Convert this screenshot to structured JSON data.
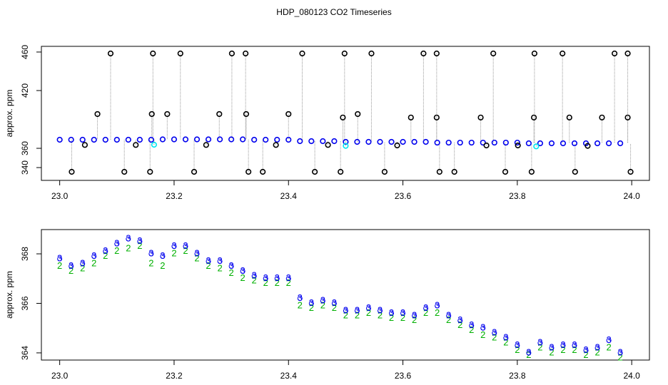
{
  "chart_data": [
    {
      "type": "scatter",
      "title": "HDP_080123  CO2 Timeseries",
      "y_label": "approx. ppm",
      "xlim": [
        22.968,
        24.031
      ],
      "ylim": [
        326.7,
        465.9
      ],
      "xticks": [
        {
          "value": 23,
          "label": "23.0"
        },
        23.2,
        23.4,
        23.6,
        23.8,
        {
          "value": 24,
          "label": "24.0"
        }
      ],
      "yticks": [
        340,
        360,
        420,
        460
      ],
      "series": [
        {
          "color": "#0000ee",
          "x": [
            23.0,
            23.02,
            23.04,
            23.06,
            23.08,
            23.1,
            23.12,
            23.14,
            23.16,
            23.18,
            23.2,
            23.22,
            23.24,
            23.26,
            23.28,
            23.3,
            23.32,
            23.34,
            23.36,
            23.38,
            23.4,
            23.42,
            23.44,
            23.46,
            23.48,
            23.5,
            23.52,
            23.54,
            23.56,
            23.58,
            23.6,
            23.62,
            23.64,
            23.66,
            23.68,
            23.7,
            23.72,
            23.74,
            23.76,
            23.78,
            23.8,
            23.82,
            23.84,
            23.86,
            23.88,
            23.9,
            23.92,
            23.94,
            23.96,
            23.98
          ],
          "values": [
            368.9,
            368.9,
            368.9,
            368.9,
            368.9,
            368.9,
            368.9,
            368.9,
            368.9,
            369.3,
            369.3,
            369.3,
            369.3,
            369.3,
            369.3,
            369.3,
            369.3,
            368.9,
            368.9,
            368.9,
            368.9,
            367.4,
            367.4,
            367.4,
            367.4,
            366.7,
            366.7,
            366.7,
            366.7,
            366.7,
            366.7,
            366.7,
            366.7,
            365.9,
            365.9,
            365.9,
            365.9,
            365.9,
            365.9,
            365.9,
            365.9,
            365.2,
            365.2,
            365.2,
            365.2,
            365.2,
            365.2,
            365.2,
            365.2,
            365.2
          ]
        },
        {
          "color": "#000000",
          "x": [
            23.089,
            23.163,
            23.211,
            23.301,
            23.325,
            23.424,
            23.498,
            23.545,
            23.636,
            23.659,
            23.758,
            23.83,
            23.879,
            23.97,
            23.993,
            23.021,
            23.113,
            23.158,
            23.235,
            23.33,
            23.355,
            23.446,
            23.491,
            23.568,
            23.664,
            23.69,
            23.779,
            23.825,
            23.901,
            23.998,
            23.066,
            23.161,
            23.188,
            23.279,
            23.326,
            23.4,
            23.495,
            23.521,
            23.614,
            23.659,
            23.736,
            23.829,
            23.891,
            23.948,
            23.993,
            23.044,
            23.133,
            23.256,
            23.378,
            23.469,
            23.59,
            23.746,
            23.801,
            23.923
          ],
          "values": [
            458.5,
            458.5,
            458.5,
            458.5,
            458.5,
            458.5,
            458.5,
            458.5,
            458.5,
            458.5,
            458.5,
            458.5,
            458.5,
            458.5,
            458.5,
            335.6,
            335.6,
            335.6,
            335.6,
            335.6,
            335.6,
            335.6,
            335.6,
            335.6,
            335.6,
            335.6,
            335.6,
            335.6,
            335.6,
            335.6,
            395.6,
            395.6,
            395.6,
            395.6,
            395.6,
            395.6,
            392.0,
            395.6,
            392.0,
            392.0,
            392.0,
            392.0,
            392.0,
            392.0,
            392.0,
            363.5,
            363.5,
            363.5,
            363.5,
            363.5,
            363.0,
            363.0,
            363.0,
            362.5
          ]
        },
        {
          "color": "#00e5ee",
          "x": [
            23.165,
            23.5,
            23.833
          ],
          "values": [
            363.7,
            362.5,
            362.0
          ]
        }
      ]
    },
    {
      "type": "symbols",
      "y_label": "approx. ppm",
      "xlim": [
        22.968,
        24.031
      ],
      "ylim": [
        363.71,
        368.98
      ],
      "xticks": [
        {
          "value": 23,
          "label": "23.0"
        },
        23.2,
        23.4,
        23.6,
        23.8,
        {
          "value": 24,
          "label": "24.0"
        }
      ],
      "yticks": [
        364,
        366,
        368
      ],
      "series": [
        {
          "symbol": "2",
          "color": "#00b000",
          "x": [
            23.0,
            23.02,
            23.04,
            23.06,
            23.08,
            23.1,
            23.12,
            23.14,
            23.16,
            23.18,
            23.2,
            23.22,
            23.24,
            23.26,
            23.28,
            23.3,
            23.32,
            23.34,
            23.36,
            23.38,
            23.4,
            23.42,
            23.44,
            23.46,
            23.48,
            23.5,
            23.52,
            23.54,
            23.56,
            23.58,
            23.6,
            23.62,
            23.64,
            23.66,
            23.68,
            23.7,
            23.72,
            23.74,
            23.76,
            23.78,
            23.8,
            23.82,
            23.84,
            23.86,
            23.88,
            23.9,
            23.92,
            23.94,
            23.96,
            23.98
          ],
          "values": [
            367.5,
            367.3,
            367.4,
            367.6,
            367.9,
            368.1,
            368.2,
            368.3,
            367.6,
            367.5,
            368.0,
            368.1,
            367.8,
            367.5,
            367.4,
            367.2,
            367.0,
            366.9,
            366.8,
            366.8,
            366.8,
            365.9,
            365.8,
            365.9,
            365.8,
            365.5,
            365.5,
            365.6,
            365.5,
            365.4,
            365.4,
            365.3,
            365.6,
            365.6,
            365.3,
            365.1,
            364.9,
            364.7,
            364.6,
            364.4,
            364.1,
            363.9,
            364.2,
            364.0,
            364.1,
            364.1,
            363.9,
            364.0,
            364.2,
            363.8
          ]
        },
        {
          "symbol": "3",
          "color": "#0000ee",
          "x": [
            23.0,
            23.02,
            23.04,
            23.06,
            23.08,
            23.1,
            23.12,
            23.14,
            23.16,
            23.18,
            23.2,
            23.22,
            23.24,
            23.26,
            23.28,
            23.3,
            23.32,
            23.34,
            23.36,
            23.38,
            23.4,
            23.42,
            23.44,
            23.46,
            23.48,
            23.5,
            23.52,
            23.54,
            23.56,
            23.58,
            23.6,
            23.62,
            23.64,
            23.66,
            23.68,
            23.7,
            23.72,
            23.74,
            23.76,
            23.78,
            23.8,
            23.82,
            23.84,
            23.86,
            23.88,
            23.9,
            23.92,
            23.94,
            23.96,
            23.98
          ],
          "values": [
            367.8,
            367.5,
            367.6,
            367.9,
            368.1,
            368.4,
            368.6,
            368.5,
            368.0,
            367.9,
            368.3,
            368.3,
            368.0,
            367.7,
            367.7,
            367.5,
            367.3,
            367.1,
            367.0,
            367.0,
            367.0,
            366.2,
            366.0,
            366.1,
            366.0,
            365.7,
            365.7,
            365.8,
            365.7,
            365.6,
            365.6,
            365.5,
            365.8,
            365.9,
            365.5,
            365.3,
            365.1,
            365.0,
            364.8,
            364.6,
            364.3,
            364.0,
            364.4,
            364.2,
            364.3,
            364.3,
            364.1,
            364.2,
            364.5,
            364.0
          ]
        }
      ]
    }
  ]
}
